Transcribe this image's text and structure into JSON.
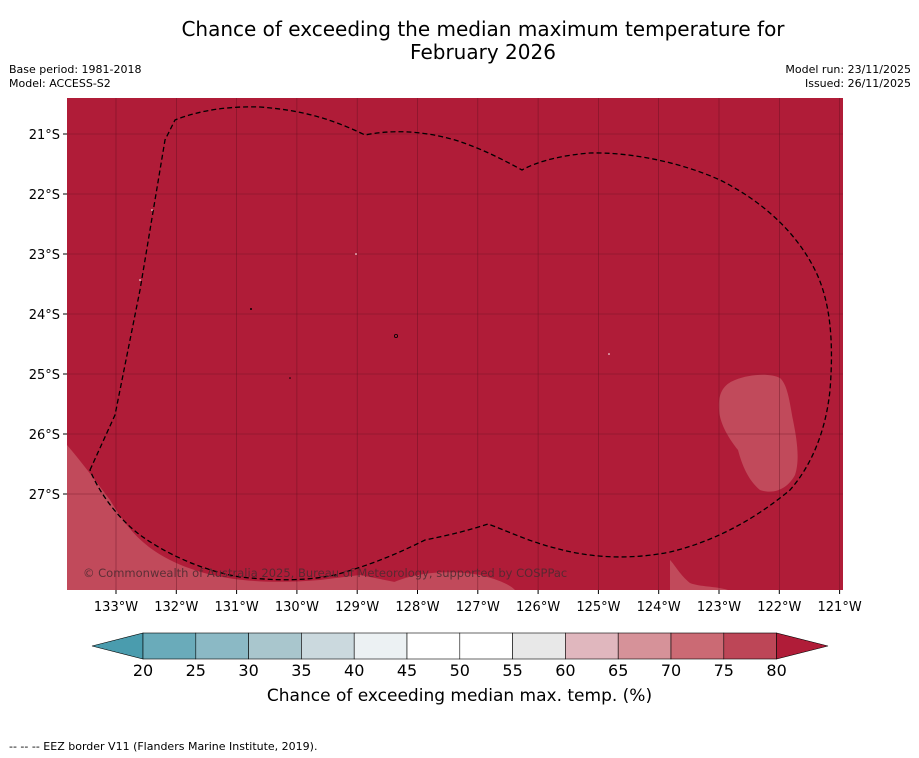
{
  "header": {
    "title_line1": "Chance of exceeding the median maximum temperature for",
    "title_line2": "February 2026",
    "base_period": "Base period: 1981-2018",
    "model": "Model: ACCESS-S2",
    "model_run": "Model run: 23/11/2025",
    "issued": "Issued: 26/11/2025"
  },
  "map": {
    "lat_labels": [
      "21°S",
      "22°S",
      "23°S",
      "24°S",
      "25°S",
      "26°S",
      "27°S"
    ],
    "lon_labels": [
      "133°W",
      "132°W",
      "131°W",
      "130°W",
      "129°W",
      "128°W",
      "127°W",
      "126°W",
      "125°W",
      "124°W",
      "123°W",
      "122°W",
      "121°W"
    ],
    "copyright": "© Commonwealth of Australia 2025, Bureau of Meteorology, supported by COSPPac",
    "fill_dominant": "#b01c38",
    "fill_lower": "#c14a5b"
  },
  "colorbar": {
    "ticks": [
      "20",
      "25",
      "30",
      "35",
      "40",
      "45",
      "50",
      "55",
      "60",
      "65",
      "70",
      "75",
      "80"
    ],
    "colors": [
      "#6aabba",
      "#8bb9c5",
      "#a9c6cd",
      "#cbd9de",
      "#ecf1f3",
      "#ffffff",
      "#ffffff",
      "#e8e8e8",
      "#e0b7be",
      "#d69299",
      "#cb6a74",
      "#bd4657"
    ],
    "left_extend_color": "#4a9cae",
    "right_extend_color": "#b01c38",
    "label": "Chance of exceeding median max. temp. (%)"
  },
  "footer": {
    "legend_text": "--  --  -- EEZ border V11 (Flanders Marine Institute, 2019)."
  }
}
